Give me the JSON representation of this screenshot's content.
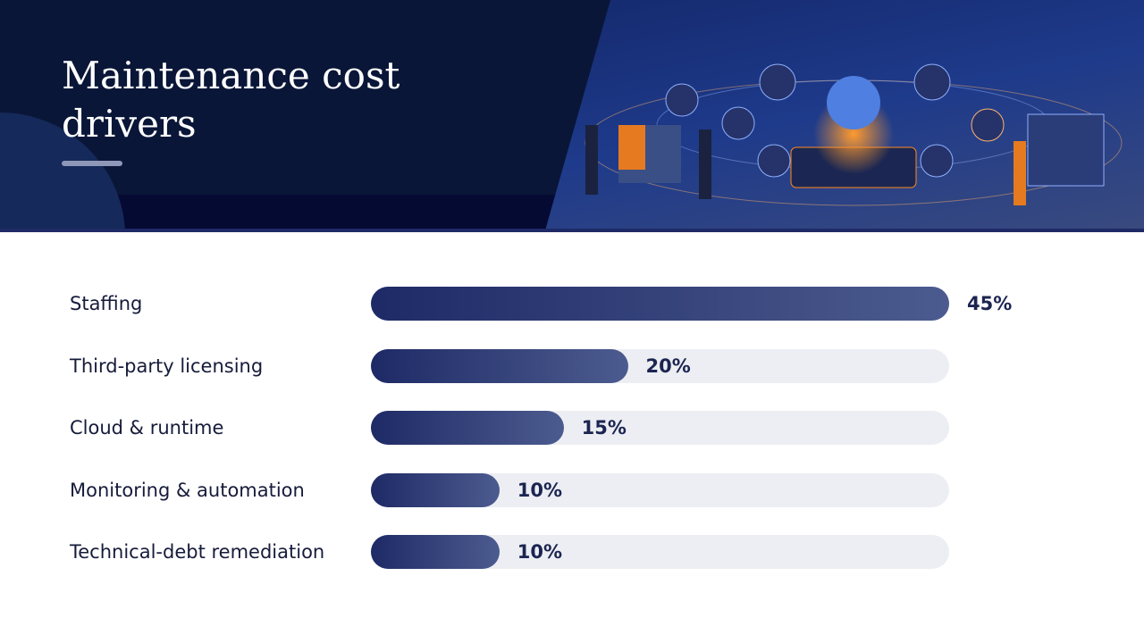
{
  "chart_data": {
    "type": "bar",
    "orientation": "horizontal",
    "title": "Maintenance cost drivers",
    "categories": [
      "Staffing",
      "Third-party licensing",
      "Cloud & runtime",
      "Monitoring & automation",
      "Technical-debt remediation"
    ],
    "values": [
      45,
      20,
      15,
      10,
      10
    ],
    "value_labels": [
      "45%",
      "20%",
      "15%",
      "10%",
      "10%"
    ],
    "xlim": [
      0,
      45
    ],
    "color": "#1e2a66"
  }
}
